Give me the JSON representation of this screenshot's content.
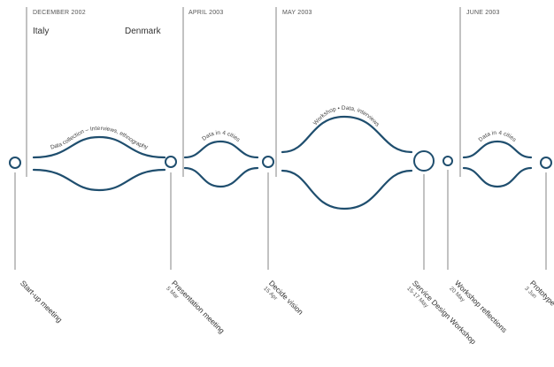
{
  "periods": [
    {
      "id": "p1",
      "label": "DECEMBER 2002"
    },
    {
      "id": "p2",
      "label": "APRIL 2003"
    },
    {
      "id": "p3",
      "label": "MAY 2003"
    },
    {
      "id": "p4",
      "label": "JUNE 2003"
    }
  ],
  "countries": {
    "left": "Italy",
    "right": "Denmark"
  },
  "milestones": [
    {
      "id": "m1",
      "title": "Start-up meeting",
      "sub": ""
    },
    {
      "id": "m2",
      "title": "Presentation meeting",
      "sub": "5 Mar"
    },
    {
      "id": "m3",
      "title": "Decide vision",
      "sub": "15 Apr"
    },
    {
      "id": "m4",
      "title": "Service Design Workshop",
      "sub": "15-17 May"
    },
    {
      "id": "m5",
      "title": "Workshop reflections",
      "sub": "20 May"
    },
    {
      "id": "m6",
      "title": "Prototype",
      "sub": "3 Jun"
    }
  ],
  "arcs": [
    {
      "id": "a1",
      "label": "Data collection – Interviews, ethnography"
    },
    {
      "id": "a2",
      "label": "Data in 4 cities"
    },
    {
      "id": "a3",
      "label": "Workshop • Data, interviews"
    },
    {
      "id": "a4",
      "label": "Data in 4 cities"
    }
  ],
  "colors": {
    "flow": "#1f4e6e",
    "node": "#1f4e6e",
    "divider": "#9a9a9a"
  }
}
